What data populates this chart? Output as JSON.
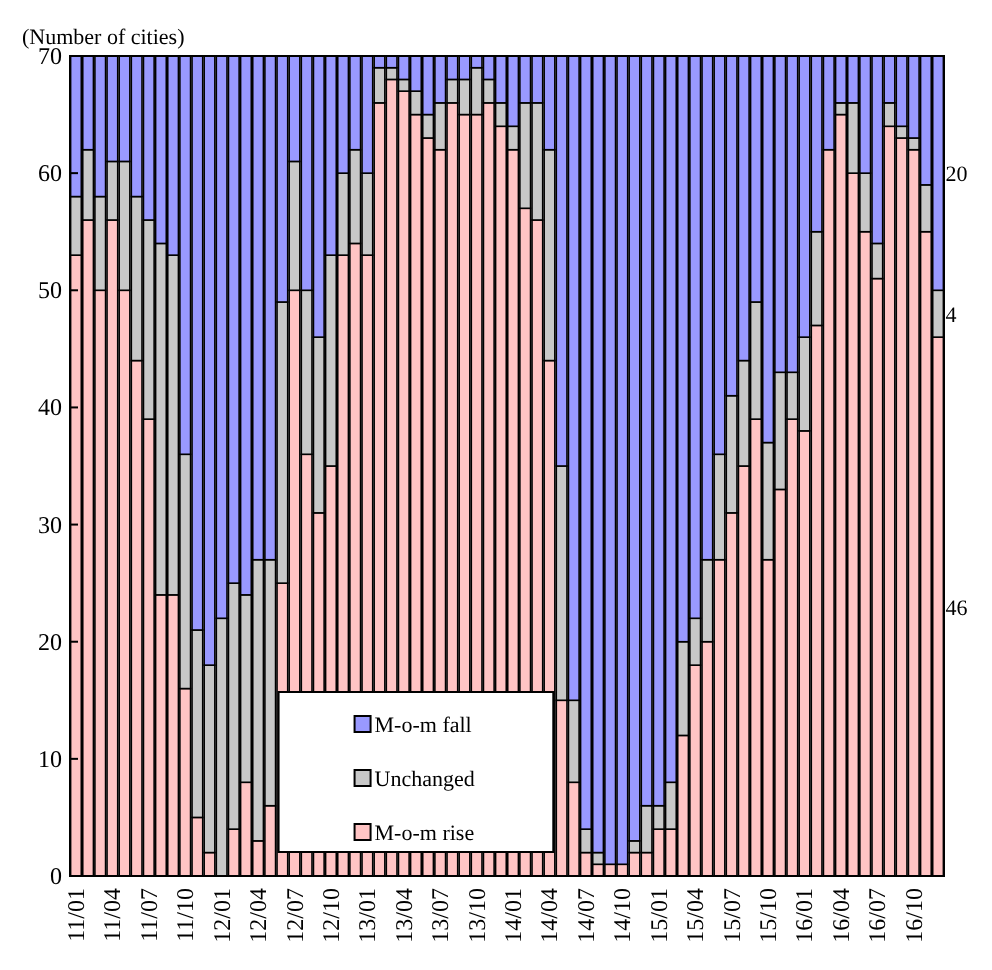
{
  "chart_data": {
    "type": "bar",
    "stacked": true,
    "ylabel": "(Number of cities)",
    "categories": [
      "11/01",
      null,
      null,
      "11/04",
      null,
      null,
      "11/07",
      null,
      null,
      "11/10",
      null,
      null,
      "12/01",
      null,
      null,
      "12/04",
      null,
      null,
      "12/07",
      null,
      null,
      "12/10",
      null,
      null,
      "13/01",
      null,
      null,
      "13/04",
      null,
      null,
      "13/07",
      null,
      null,
      "13/10",
      null,
      null,
      "14/01",
      null,
      null,
      "14/04",
      null,
      null,
      "14/07",
      null,
      null,
      "14/10",
      null,
      null,
      "15/01",
      null,
      null,
      "15/04",
      null,
      null,
      "15/07",
      null,
      null,
      "15/10",
      null,
      null,
      "16/01",
      null,
      null,
      "16/04",
      null,
      null,
      "16/07",
      null,
      null,
      "16/10",
      null,
      null
    ],
    "series": [
      {
        "name": "M-o-m rise",
        "color": "#ffc4c4",
        "values": [
          53,
          56,
          50,
          56,
          50,
          44,
          39,
          24,
          24,
          16,
          5,
          2,
          0,
          4,
          8,
          3,
          6,
          25,
          50,
          36,
          31,
          35,
          53,
          54,
          53,
          66,
          68,
          67,
          65,
          63,
          62,
          66,
          65,
          65,
          66,
          64,
          62,
          57,
          56,
          44,
          15,
          8,
          2,
          1,
          1,
          1,
          2,
          2,
          4,
          4,
          12,
          18,
          20,
          27,
          31,
          35,
          39,
          27,
          33,
          39,
          38,
          47,
          62,
          65,
          60,
          55,
          51,
          64,
          63,
          62,
          55,
          46
        ],
        "value_labels": [
          null,
          null,
          null,
          null,
          null,
          null,
          null,
          null,
          null,
          null,
          null,
          null,
          null,
          null,
          null,
          null,
          null,
          null,
          null,
          null,
          null,
          null,
          null,
          null,
          null,
          null,
          null,
          null,
          null,
          null,
          null,
          null,
          null,
          null,
          null,
          null,
          null,
          null,
          null,
          null,
          null,
          null,
          null,
          null,
          null,
          null,
          null,
          null,
          null,
          null,
          null,
          null,
          null,
          null,
          null,
          null,
          null,
          null,
          null,
          null,
          null,
          null,
          null,
          null,
          null,
          null,
          null,
          null,
          null,
          null,
          null,
          "46"
        ]
      },
      {
        "name": "Unchanged",
        "color": "#c8c8c8",
        "values": [
          5,
          6,
          8,
          5,
          11,
          14,
          17,
          30,
          29,
          20,
          16,
          16,
          22,
          21,
          16,
          24,
          21,
          24,
          11,
          14,
          15,
          18,
          7,
          8,
          7,
          3,
          1,
          1,
          2,
          2,
          4,
          2,
          3,
          4,
          2,
          2,
          2,
          9,
          10,
          18,
          20,
          7,
          2,
          1,
          0,
          0,
          1,
          4,
          2,
          4,
          8,
          4,
          7,
          9,
          10,
          9,
          10,
          10,
          10,
          4,
          8,
          8,
          0,
          1,
          6,
          5,
          3,
          2,
          1,
          1,
          4,
          4
        ],
        "value_labels": [
          null,
          null,
          null,
          null,
          null,
          null,
          null,
          null,
          null,
          null,
          null,
          null,
          null,
          null,
          null,
          null,
          null,
          null,
          null,
          null,
          null,
          null,
          null,
          null,
          null,
          null,
          null,
          null,
          null,
          null,
          null,
          null,
          null,
          null,
          null,
          null,
          null,
          null,
          null,
          null,
          null,
          null,
          null,
          null,
          null,
          null,
          null,
          null,
          null,
          null,
          null,
          null,
          null,
          null,
          null,
          null,
          null,
          null,
          null,
          null,
          null,
          null,
          null,
          null,
          null,
          null,
          null,
          null,
          null,
          null,
          null,
          "4"
        ]
      },
      {
        "name": "M-o-m fall",
        "color": "#9999ff",
        "values": [
          12,
          8,
          12,
          9,
          9,
          12,
          14,
          16,
          17,
          34,
          49,
          52,
          48,
          45,
          46,
          43,
          43,
          21,
          9,
          20,
          24,
          17,
          10,
          8,
          10,
          1,
          1,
          2,
          3,
          5,
          4,
          2,
          2,
          1,
          2,
          4,
          6,
          4,
          4,
          8,
          35,
          55,
          66,
          68,
          69,
          69,
          67,
          64,
          64,
          62,
          50,
          48,
          43,
          34,
          29,
          26,
          21,
          33,
          27,
          27,
          24,
          15,
          8,
          4,
          4,
          10,
          16,
          4,
          6,
          7,
          11,
          20
        ],
        "value_labels": [
          null,
          null,
          null,
          null,
          null,
          null,
          null,
          null,
          null,
          null,
          null,
          null,
          null,
          null,
          null,
          null,
          null,
          null,
          null,
          null,
          null,
          null,
          null,
          null,
          null,
          null,
          null,
          null,
          null,
          null,
          null,
          null,
          null,
          null,
          null,
          null,
          null,
          null,
          null,
          null,
          null,
          null,
          null,
          null,
          null,
          null,
          null,
          null,
          null,
          null,
          null,
          null,
          null,
          null,
          null,
          null,
          null,
          null,
          null,
          null,
          null,
          null,
          null,
          null,
          null,
          null,
          null,
          null,
          null,
          null,
          null,
          "20"
        ]
      }
    ],
    "ylim": [
      0,
      70
    ],
    "yticks": [
      0,
      10,
      20,
      30,
      40,
      50,
      60,
      70
    ],
    "legend": "bottom",
    "grid": false
  }
}
